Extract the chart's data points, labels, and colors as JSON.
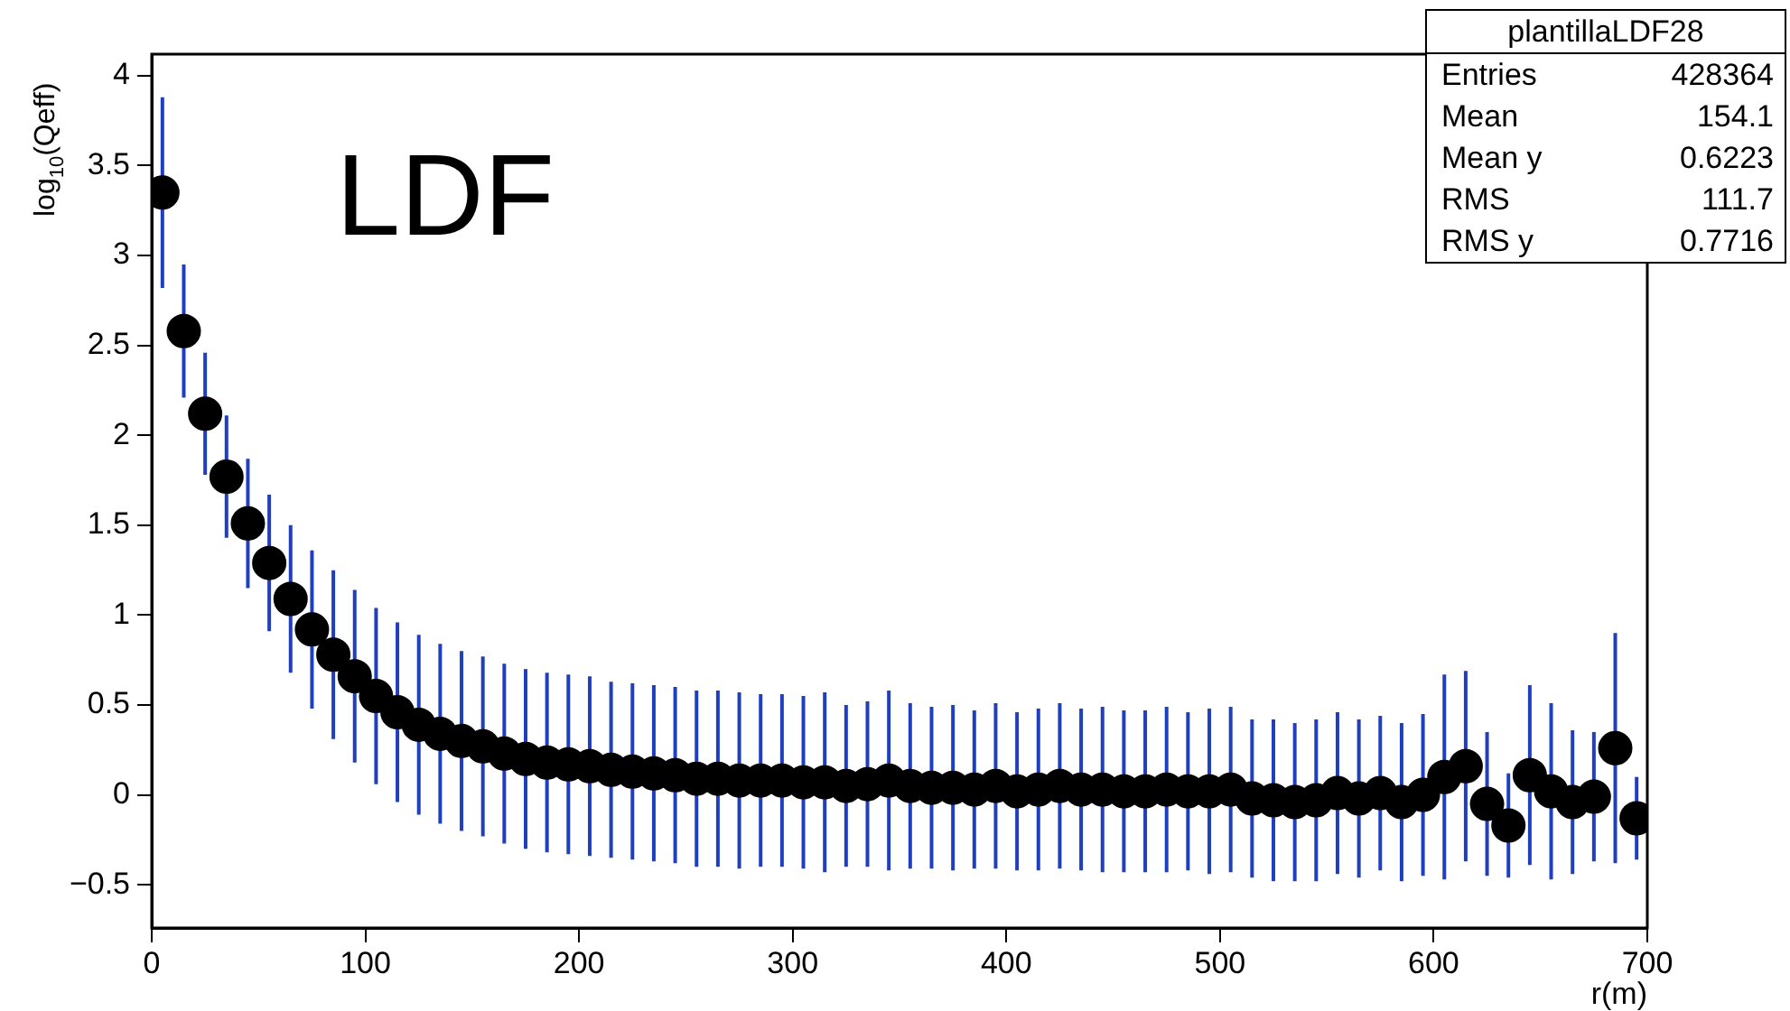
{
  "chart_data": {
    "type": "scatter",
    "title": "LDF",
    "xlabel": "r(m)",
    "ylabel": "log$_{10}$(Qeff)",
    "x": [
      5,
      15,
      25,
      35,
      45,
      55,
      65,
      75,
      85,
      95,
      105,
      115,
      125,
      135,
      145,
      155,
      165,
      175,
      185,
      195,
      205,
      215,
      225,
      235,
      245,
      255,
      265,
      275,
      285,
      295,
      305,
      315,
      325,
      335,
      345,
      355,
      365,
      375,
      385,
      395,
      405,
      415,
      425,
      435,
      445,
      455,
      465,
      475,
      485,
      495,
      505,
      515,
      525,
      535,
      545,
      555,
      565,
      575,
      585,
      595,
      605,
      615,
      625,
      635,
      645,
      655,
      665,
      675,
      685,
      695
    ],
    "series": [
      {
        "color": "#000000",
        "values": [
          3.35,
          2.58,
          2.12,
          1.77,
          1.51,
          1.29,
          1.09,
          0.92,
          0.78,
          0.66,
          0.55,
          0.46,
          0.39,
          0.34,
          0.3,
          0.27,
          0.23,
          0.2,
          0.18,
          0.17,
          0.16,
          0.14,
          0.13,
          0.12,
          0.11,
          0.09,
          0.09,
          0.08,
          0.08,
          0.08,
          0.07,
          0.07,
          0.05,
          0.06,
          0.08,
          0.05,
          0.04,
          0.04,
          0.03,
          0.05,
          0.02,
          0.03,
          0.05,
          0.03,
          0.03,
          0.02,
          0.02,
          0.03,
          0.02,
          0.02,
          0.03,
          -0.02,
          -0.03,
          -0.04,
          -0.03,
          0.01,
          -0.02,
          0.01,
          -0.04,
          0,
          0.1,
          0.16,
          -0.05,
          -0.17,
          0.11,
          0.02,
          -0.04,
          -0.01,
          0.26,
          -0.13
        ],
        "errors": [
          0.53,
          0.37,
          0.34,
          0.34,
          0.36,
          0.38,
          0.41,
          0.44,
          0.47,
          0.48,
          0.49,
          0.5,
          0.5,
          0.5,
          0.5,
          0.5,
          0.5,
          0.5,
          0.5,
          0.5,
          0.5,
          0.49,
          0.49,
          0.49,
          0.49,
          0.49,
          0.49,
          0.49,
          0.48,
          0.48,
          0.48,
          0.5,
          0.45,
          0.46,
          0.5,
          0.46,
          0.45,
          0.46,
          0.44,
          0.46,
          0.44,
          0.45,
          0.46,
          0.45,
          0.46,
          0.45,
          0.45,
          0.46,
          0.44,
          0.46,
          0.46,
          0.44,
          0.45,
          0.44,
          0.45,
          0.45,
          0.44,
          0.43,
          0.44,
          0.45,
          0.57,
          0.53,
          0.4,
          0.29,
          0.5,
          0.49,
          0.4,
          0.36,
          0.64,
          0.23
        ]
      }
    ],
    "xlim": [
      0,
      700
    ],
    "xticks": [
      0,
      100,
      200,
      300,
      400,
      500,
      600,
      700
    ],
    "ylim": [
      -0.74,
      4.12
    ],
    "yticks": [
      {
        "value": -0.5,
        "label": "−0.5"
      },
      0,
      0.5,
      1,
      1.5,
      2,
      2.5,
      3,
      3.5,
      4
    ],
    "marker": "circle",
    "legend": false,
    "grid": false,
    "annotations": [
      "plantillaLDF28",
      "Entries 428364",
      "Mean 154.1",
      "Mean y 0.6223",
      "RMS 111.7",
      "RMS y 0.7716"
    ]
  }
}
